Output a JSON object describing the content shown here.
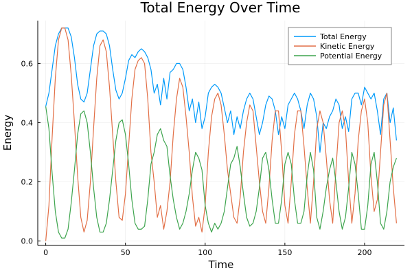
{
  "chart_data": {
    "type": "line",
    "title": "Total Energy Over Time",
    "xlabel": "Time",
    "ylabel": "Energy",
    "xlim": [
      -5,
      225
    ],
    "ylim": [
      -0.015,
      0.745
    ],
    "xticks": [
      0,
      50,
      100,
      150,
      200
    ],
    "yticks": [
      0.0,
      0.2,
      0.4,
      0.6
    ],
    "xtick_labels": [
      "0",
      "50",
      "100",
      "150",
      "200"
    ],
    "ytick_labels": [
      "0.0",
      "0.2",
      "0.4",
      "0.6"
    ],
    "grid": true,
    "legend_position": "top-right",
    "series": [
      {
        "name": "Total Energy",
        "color": "#009AFA",
        "x": [
          0,
          2,
          4,
          6,
          8,
          10,
          12,
          14,
          16,
          18,
          20,
          22,
          24,
          26,
          28,
          30,
          32,
          34,
          36,
          38,
          40,
          42,
          44,
          46,
          48,
          50,
          52,
          54,
          56,
          58,
          60,
          62,
          64,
          66,
          68,
          70,
          72,
          74,
          76,
          78,
          80,
          82,
          84,
          86,
          88,
          90,
          92,
          94,
          96,
          98,
          100,
          102,
          104,
          106,
          108,
          110,
          112,
          114,
          116,
          118,
          120,
          122,
          124,
          126,
          128,
          130,
          132,
          134,
          136,
          138,
          140,
          142,
          144,
          146,
          148,
          150,
          152,
          154,
          156,
          158,
          160,
          162,
          164,
          166,
          168,
          170,
          172,
          174,
          176,
          178,
          180,
          182,
          184,
          186,
          188,
          190,
          192,
          194,
          196,
          198,
          200,
          202,
          204,
          206,
          208,
          210,
          212,
          214,
          216,
          218,
          220
        ],
        "y": [
          0.455,
          0.5,
          0.58,
          0.66,
          0.7,
          0.72,
          0.72,
          0.72,
          0.69,
          0.62,
          0.53,
          0.48,
          0.47,
          0.5,
          0.58,
          0.66,
          0.7,
          0.71,
          0.71,
          0.7,
          0.66,
          0.58,
          0.51,
          0.48,
          0.5,
          0.55,
          0.61,
          0.63,
          0.62,
          0.64,
          0.65,
          0.64,
          0.62,
          0.58,
          0.5,
          0.53,
          0.46,
          0.55,
          0.48,
          0.57,
          0.58,
          0.6,
          0.6,
          0.58,
          0.52,
          0.44,
          0.48,
          0.4,
          0.47,
          0.38,
          0.42,
          0.5,
          0.52,
          0.53,
          0.52,
          0.5,
          0.45,
          0.4,
          0.44,
          0.36,
          0.42,
          0.38,
          0.44,
          0.48,
          0.5,
          0.48,
          0.42,
          0.36,
          0.4,
          0.46,
          0.49,
          0.48,
          0.44,
          0.36,
          0.42,
          0.38,
          0.46,
          0.48,
          0.5,
          0.48,
          0.44,
          0.38,
          0.46,
          0.5,
          0.48,
          0.42,
          0.3,
          0.4,
          0.38,
          0.42,
          0.44,
          0.48,
          0.46,
          0.38,
          0.42,
          0.37,
          0.48,
          0.5,
          0.5,
          0.46,
          0.52,
          0.5,
          0.48,
          0.5,
          0.44,
          0.36,
          0.48,
          0.5,
          0.4,
          0.45,
          0.34
        ]
      },
      {
        "name": "Kinetic Energy",
        "color": "#E26F46",
        "x": [
          0,
          2,
          4,
          6,
          8,
          10,
          12,
          14,
          16,
          18,
          20,
          22,
          24,
          26,
          28,
          30,
          32,
          34,
          36,
          38,
          40,
          42,
          44,
          46,
          48,
          50,
          52,
          54,
          56,
          58,
          60,
          62,
          64,
          66,
          68,
          70,
          72,
          74,
          76,
          78,
          80,
          82,
          84,
          86,
          88,
          90,
          92,
          94,
          96,
          98,
          100,
          102,
          104,
          106,
          108,
          110,
          112,
          114,
          116,
          118,
          120,
          122,
          124,
          126,
          128,
          130,
          132,
          134,
          136,
          138,
          140,
          142,
          144,
          146,
          148,
          150,
          152,
          154,
          156,
          158,
          160,
          162,
          164,
          166,
          168,
          170,
          172,
          174,
          176,
          178,
          180,
          182,
          184,
          186,
          188,
          190,
          192,
          194,
          196,
          198,
          200,
          202,
          204,
          206,
          208,
          210,
          212,
          214,
          216,
          218,
          220
        ],
        "y": [
          0.0,
          0.12,
          0.35,
          0.55,
          0.68,
          0.72,
          0.72,
          0.68,
          0.56,
          0.4,
          0.22,
          0.08,
          0.03,
          0.07,
          0.2,
          0.38,
          0.55,
          0.66,
          0.68,
          0.64,
          0.52,
          0.36,
          0.2,
          0.08,
          0.07,
          0.16,
          0.32,
          0.48,
          0.58,
          0.61,
          0.62,
          0.6,
          0.48,
          0.3,
          0.2,
          0.08,
          0.12,
          0.04,
          0.1,
          0.2,
          0.36,
          0.48,
          0.55,
          0.52,
          0.42,
          0.3,
          0.15,
          0.05,
          0.08,
          0.03,
          0.12,
          0.3,
          0.42,
          0.48,
          0.5,
          0.46,
          0.36,
          0.24,
          0.16,
          0.08,
          0.06,
          0.15,
          0.3,
          0.4,
          0.46,
          0.44,
          0.32,
          0.2,
          0.1,
          0.06,
          0.18,
          0.34,
          0.44,
          0.44,
          0.3,
          0.12,
          0.06,
          0.2,
          0.36,
          0.44,
          0.44,
          0.32,
          0.18,
          0.06,
          0.2,
          0.38,
          0.44,
          0.4,
          0.28,
          0.14,
          0.06,
          0.24,
          0.4,
          0.44,
          0.38,
          0.2,
          0.06,
          0.16,
          0.34,
          0.44,
          0.48,
          0.4,
          0.22,
          0.1,
          0.14,
          0.3,
          0.46,
          0.5,
          0.34,
          0.18,
          0.06
        ]
      },
      {
        "name": "Potential Energy",
        "color": "#3DA44D",
        "x": [
          0,
          2,
          4,
          6,
          8,
          10,
          12,
          14,
          16,
          18,
          20,
          22,
          24,
          26,
          28,
          30,
          32,
          34,
          36,
          38,
          40,
          42,
          44,
          46,
          48,
          50,
          52,
          54,
          56,
          58,
          60,
          62,
          64,
          66,
          68,
          70,
          72,
          74,
          76,
          78,
          80,
          82,
          84,
          86,
          88,
          90,
          92,
          94,
          96,
          98,
          100,
          102,
          104,
          106,
          108,
          110,
          112,
          114,
          116,
          118,
          120,
          122,
          124,
          126,
          128,
          130,
          132,
          134,
          136,
          138,
          140,
          142,
          144,
          146,
          148,
          150,
          152,
          154,
          156,
          158,
          160,
          162,
          164,
          166,
          168,
          170,
          172,
          174,
          176,
          178,
          180,
          182,
          184,
          186,
          188,
          190,
          192,
          194,
          196,
          198,
          200,
          202,
          204,
          206,
          208,
          210,
          212,
          214,
          216,
          218,
          220
        ],
        "y": [
          0.455,
          0.38,
          0.23,
          0.1,
          0.03,
          0.01,
          0.01,
          0.04,
          0.13,
          0.24,
          0.36,
          0.43,
          0.44,
          0.4,
          0.3,
          0.18,
          0.08,
          0.03,
          0.03,
          0.06,
          0.14,
          0.24,
          0.34,
          0.4,
          0.41,
          0.36,
          0.26,
          0.14,
          0.06,
          0.04,
          0.04,
          0.05,
          0.14,
          0.26,
          0.3,
          0.36,
          0.38,
          0.34,
          0.32,
          0.22,
          0.14,
          0.08,
          0.04,
          0.06,
          0.1,
          0.16,
          0.24,
          0.3,
          0.28,
          0.24,
          0.12,
          0.06,
          0.03,
          0.06,
          0.04,
          0.06,
          0.1,
          0.18,
          0.26,
          0.28,
          0.32,
          0.25,
          0.16,
          0.08,
          0.05,
          0.06,
          0.1,
          0.18,
          0.28,
          0.3,
          0.24,
          0.14,
          0.06,
          0.06,
          0.14,
          0.26,
          0.3,
          0.26,
          0.14,
          0.06,
          0.06,
          0.1,
          0.22,
          0.3,
          0.24,
          0.08,
          0.04,
          0.1,
          0.18,
          0.24,
          0.28,
          0.2,
          0.1,
          0.04,
          0.08,
          0.18,
          0.3,
          0.26,
          0.16,
          0.04,
          0.04,
          0.12,
          0.26,
          0.3,
          0.2,
          0.06,
          0.04,
          0.1,
          0.2,
          0.25,
          0.28
        ]
      }
    ]
  }
}
